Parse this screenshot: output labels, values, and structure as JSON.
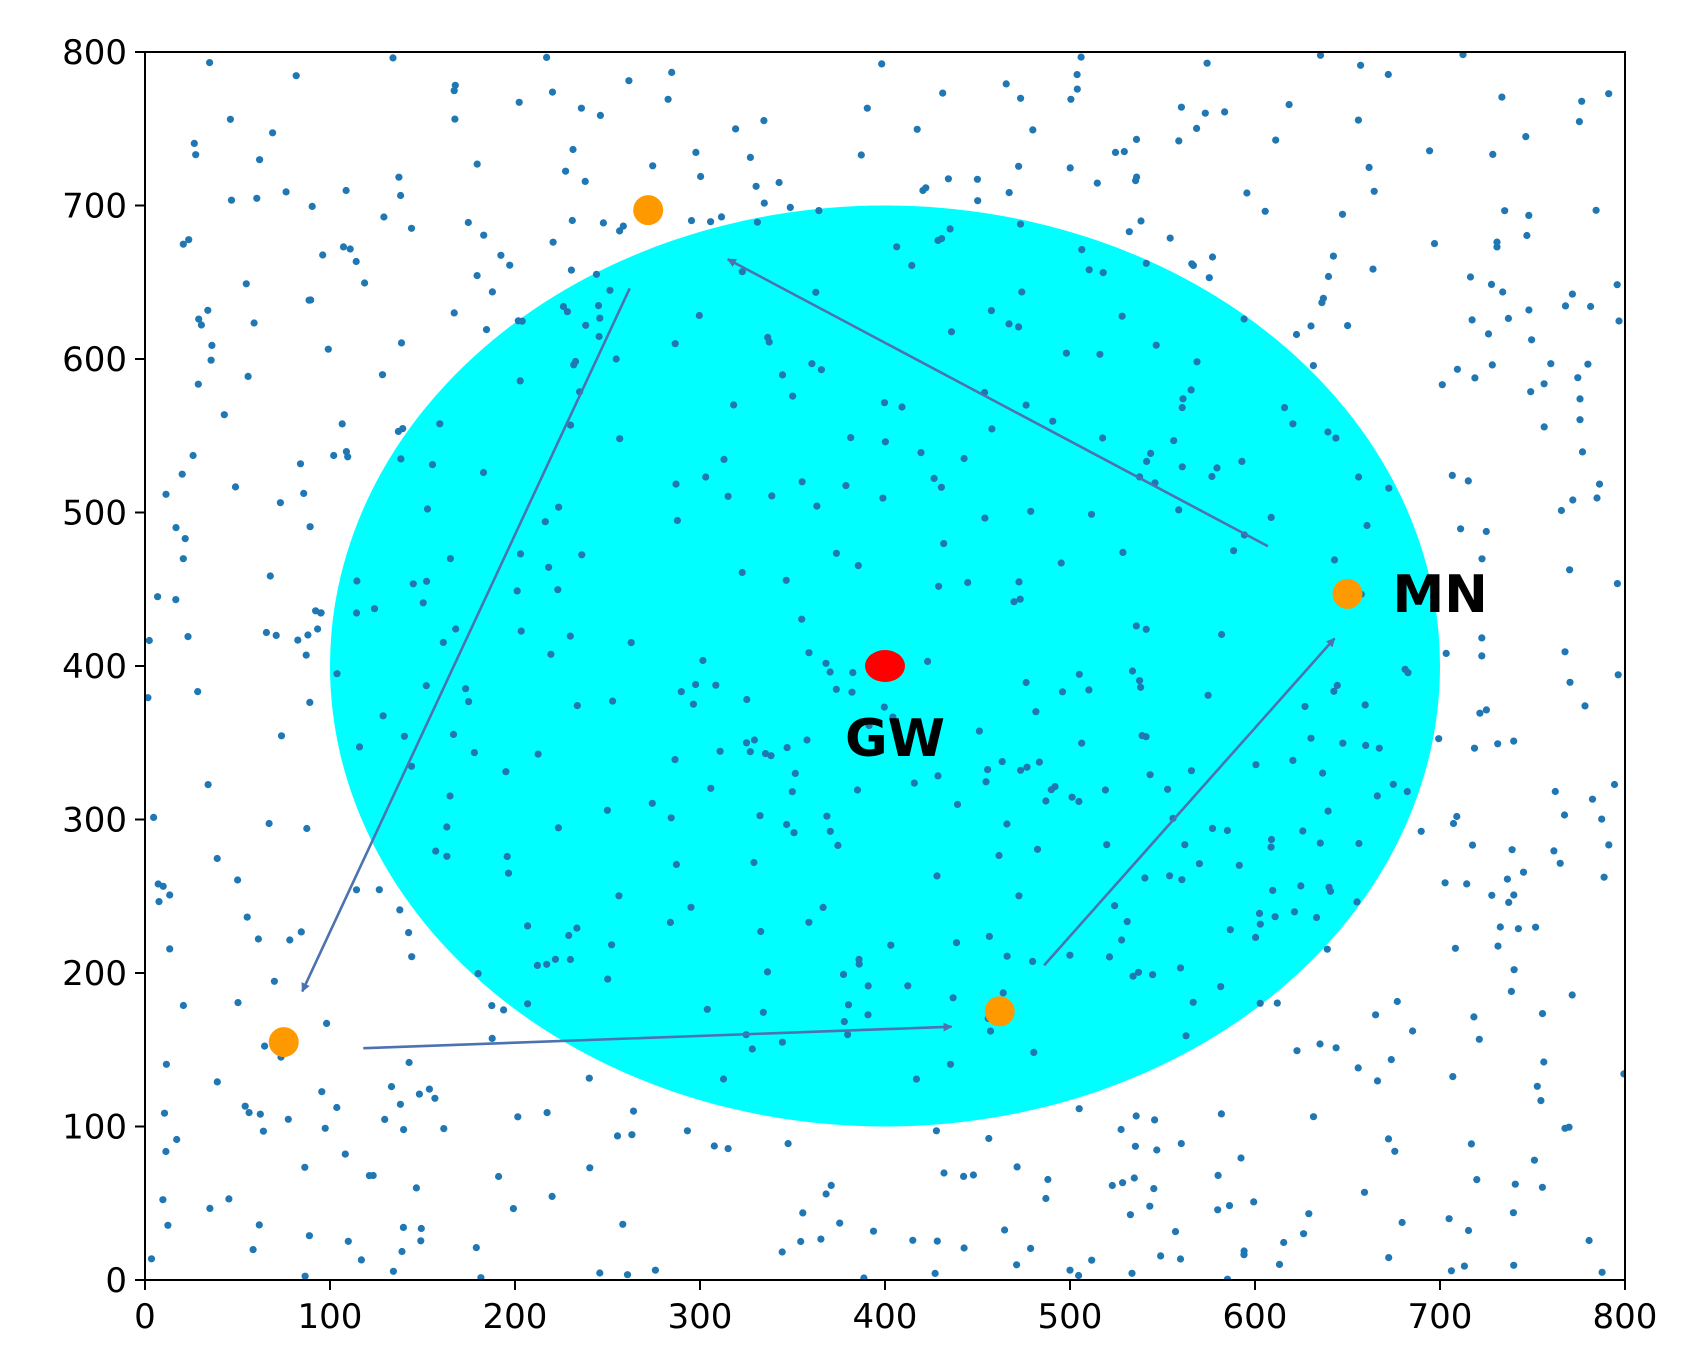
{
  "chart_data": {
    "type": "scatter",
    "title": "",
    "xlabel": "",
    "ylabel": "",
    "xlim": [
      0,
      800
    ],
    "ylim": [
      0,
      800
    ],
    "x_ticks": [
      "0",
      "100",
      "200",
      "300",
      "400",
      "500",
      "600",
      "700",
      "800"
    ],
    "y_ticks": [
      "0",
      "100",
      "200",
      "300",
      "400",
      "500",
      "600",
      "700",
      "800"
    ],
    "grid": false,
    "legend": "none",
    "coverage_area": {
      "center": [
        400,
        400
      ],
      "radius": 300,
      "color": "#00ffff"
    },
    "gateway": {
      "label": "GW",
      "x": 400,
      "y": 400,
      "color": "#ff0000"
    },
    "mobile_node": {
      "label": "MN",
      "color": "#ff9900",
      "positions": [
        {
          "x": 650,
          "y": 447
        },
        {
          "x": 272,
          "y": 697
        },
        {
          "x": 75,
          "y": 155
        },
        {
          "x": 462,
          "y": 175
        }
      ]
    },
    "movement_arrows": {
      "color": "#4c72b0",
      "arrows": [
        {
          "from": [
            607,
            478
          ],
          "to": [
            315,
            665
          ]
        },
        {
          "from": [
            262,
            646
          ],
          "to": [
            85,
            188
          ]
        },
        {
          "from": [
            118,
            151
          ],
          "to": [
            436,
            165
          ]
        },
        {
          "from": [
            486,
            205
          ],
          "to": [
            643,
            418
          ]
        }
      ]
    },
    "sensor_nodes": {
      "color": "#1f77b4",
      "count": 800,
      "distribution": "uniform random"
    }
  }
}
